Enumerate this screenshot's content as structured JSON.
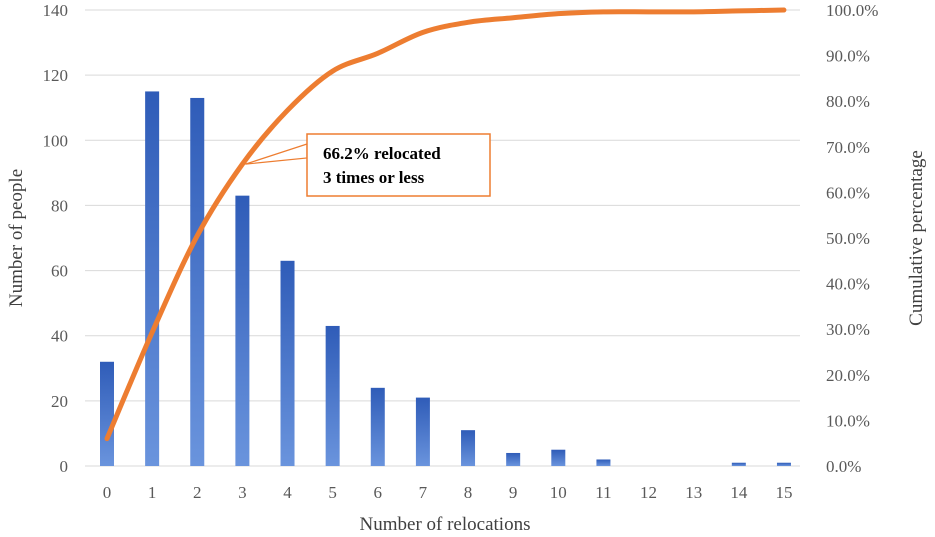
{
  "chart_data": {
    "type": "bar",
    "xlabel": "Number of relocations",
    "ylabel": "Number of people",
    "y2label": "Cumulative percentage",
    "categories": [
      "0",
      "1",
      "2",
      "3",
      "4",
      "5",
      "6",
      "7",
      "8",
      "9",
      "10",
      "11",
      "12",
      "13",
      "14",
      "15"
    ],
    "ylim": [
      0,
      140
    ],
    "yticks": [
      "0",
      "20",
      "40",
      "60",
      "80",
      "100",
      "120",
      "140"
    ],
    "y2lim": [
      0,
      100
    ],
    "y2ticks": [
      "0.0%",
      "10.0%",
      "20.0%",
      "30.0%",
      "40.0%",
      "50.0%",
      "60.0%",
      "70.0%",
      "80.0%",
      "90.0%",
      "100.0%"
    ],
    "grid": true,
    "series": [
      {
        "type": "bar",
        "axis": "left",
        "color": "#4472c4",
        "values": [
          32,
          115,
          113,
          83,
          63,
          43,
          24,
          21,
          11,
          4,
          5,
          2,
          0,
          0,
          1,
          1
        ]
      },
      {
        "type": "line",
        "axis": "right",
        "color": "#ed7d31",
        "values": [
          6.0,
          29.3,
          50.5,
          66.2,
          78.0,
          86.6,
          90.5,
          95.1,
          97.3,
          98.3,
          99.2,
          99.6,
          99.6,
          99.6,
          99.8,
          100.0
        ]
      }
    ],
    "annotations": [
      {
        "lines": [
          "66.2% relocated",
          "3 times or less"
        ],
        "category": "3",
        "value": 66.2,
        "border_color": "#ed7d31"
      }
    ]
  }
}
